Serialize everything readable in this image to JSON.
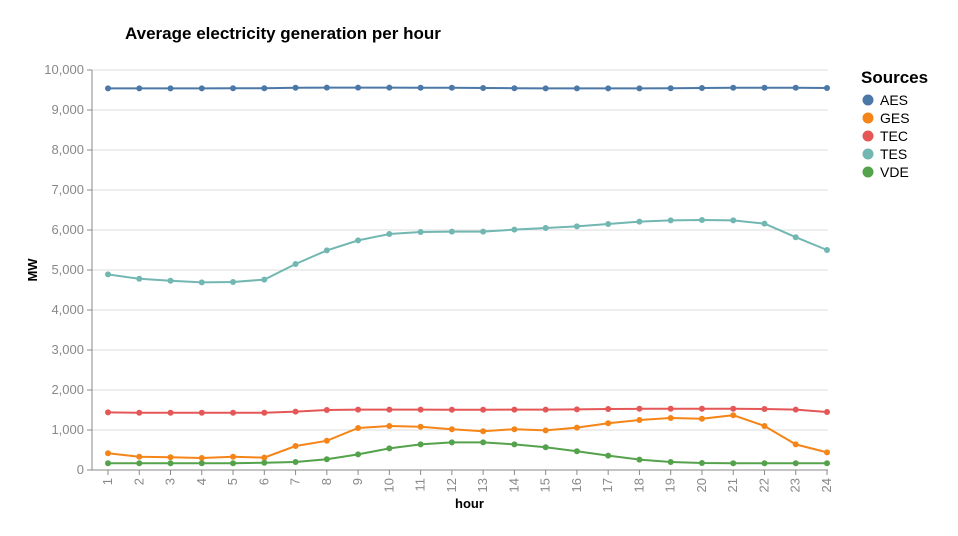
{
  "chart_data": {
    "type": "line",
    "title": "Average electricity generation per hour",
    "xlabel": "hour",
    "ylabel": "MW",
    "x": [
      1,
      2,
      3,
      4,
      5,
      6,
      7,
      8,
      9,
      10,
      11,
      12,
      13,
      14,
      15,
      16,
      17,
      18,
      19,
      20,
      21,
      22,
      23,
      24
    ],
    "ylim": [
      0,
      10000
    ],
    "yticks": [
      0,
      1000,
      2000,
      3000,
      4000,
      5000,
      6000,
      7000,
      8000,
      9000,
      10000
    ],
    "ytick_labels": [
      "0",
      "1,000",
      "2,000",
      "3,000",
      "4,000",
      "5,000",
      "6,000",
      "7,000",
      "8,000",
      "9,000",
      "10,000"
    ],
    "grid": true,
    "legend": {
      "title": "Sources",
      "placement": "right"
    },
    "series": [
      {
        "name": "AES",
        "color": "#4c78a8",
        "values": [
          9540,
          9540,
          9540,
          9540,
          9545,
          9545,
          9555,
          9560,
          9560,
          9560,
          9555,
          9555,
          9550,
          9545,
          9540,
          9540,
          9540,
          9540,
          9545,
          9550,
          9555,
          9555,
          9555,
          9550
        ]
      },
      {
        "name": "GES",
        "color": "#f58518",
        "values": [
          420,
          330,
          320,
          300,
          330,
          310,
          600,
          730,
          1050,
          1100,
          1080,
          1020,
          970,
          1020,
          990,
          1060,
          1170,
          1250,
          1300,
          1280,
          1370,
          1100,
          640,
          440
        ]
      },
      {
        "name": "TEC",
        "color": "#e45756",
        "values": [
          1440,
          1430,
          1430,
          1430,
          1430,
          1430,
          1460,
          1500,
          1510,
          1510,
          1510,
          1505,
          1505,
          1510,
          1510,
          1515,
          1525,
          1530,
          1530,
          1530,
          1530,
          1525,
          1510,
          1450
        ]
      },
      {
        "name": "TES",
        "color": "#72b7b2",
        "values": [
          4890,
          4780,
          4730,
          4690,
          4700,
          4760,
          5150,
          5490,
          5740,
          5900,
          5950,
          5960,
          5960,
          6010,
          6050,
          6090,
          6150,
          6210,
          6240,
          6250,
          6240,
          6160,
          5820,
          5500
        ]
      },
      {
        "name": "VDE",
        "color": "#54a24b",
        "values": [
          170,
          170,
          170,
          170,
          170,
          180,
          200,
          270,
          390,
          540,
          640,
          690,
          690,
          640,
          570,
          470,
          360,
          260,
          200,
          175,
          170,
          170,
          170,
          170
        ]
      }
    ]
  }
}
